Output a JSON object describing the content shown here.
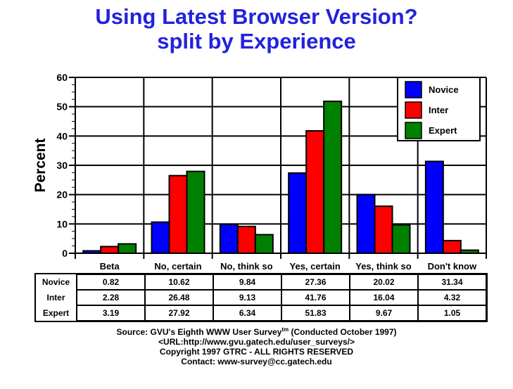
{
  "title": {
    "line1": "Using Latest Browser Version?",
    "line2": "split by Experience"
  },
  "colors": {
    "title_text": "#2222DD",
    "axis": "#000000",
    "grid": "#000000",
    "legend_background": "#FFFFFF"
  },
  "chart_data": {
    "type": "bar",
    "title": "Using Latest Browser Version? split by Experience",
    "xlabel": "",
    "ylabel": "Percent",
    "ylim": [
      0,
      60
    ],
    "ytick_step": 10,
    "yminor_step": 2.5,
    "grid": true,
    "legend_position": "top-right",
    "categories": [
      "Beta",
      "No, certain",
      "No, think so",
      "Yes, certain",
      "Yes, think so",
      "Don't know"
    ],
    "series": [
      {
        "name": "Novice",
        "color": "#0000FF",
        "values": [
          0.82,
          10.62,
          9.84,
          27.36,
          20.02,
          31.34
        ]
      },
      {
        "name": "Inter",
        "color": "#FF0000",
        "values": [
          2.28,
          26.48,
          9.13,
          41.76,
          16.04,
          4.32
        ]
      },
      {
        "name": "Expert",
        "color": "#008000",
        "values": [
          3.19,
          27.92,
          6.34,
          51.83,
          9.67,
          1.05
        ]
      }
    ]
  },
  "footer": {
    "line1_prefix": "Source: GVU's Eighth WWW User Survey",
    "line1_sup": "tm",
    "line1_suffix": " (Conducted October 1997)",
    "line2": "<URL:http://www.gvu.gatech.edu/user_surveys/>",
    "line3": "Copyright 1997 GTRC - ALL RIGHTS RESERVED",
    "line4": "Contact: www-survey@cc.gatech.edu"
  }
}
